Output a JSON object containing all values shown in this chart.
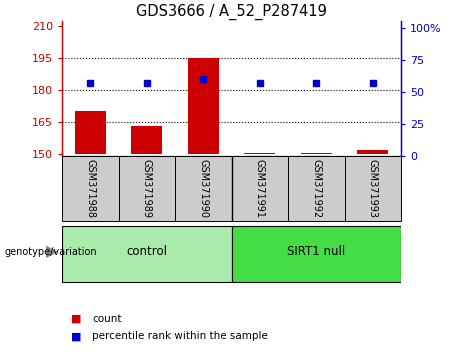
{
  "title": "GDS3666 / A_52_P287419",
  "samples": [
    "GSM371988",
    "GSM371989",
    "GSM371990",
    "GSM371991",
    "GSM371992",
    "GSM371993"
  ],
  "count_values": [
    170,
    163,
    195,
    150.5,
    150.3,
    151.5
  ],
  "percentile_values": [
    57,
    57,
    60,
    57,
    57,
    57
  ],
  "ylim_left": [
    149,
    212
  ],
  "ylim_right": [
    0,
    105
  ],
  "yticks_left": [
    150,
    165,
    180,
    195,
    210
  ],
  "yticks_right": [
    0,
    25,
    50,
    75,
    100
  ],
  "ytick_labels_right": [
    "0",
    "25",
    "50",
    "75",
    "100%"
  ],
  "bar_color": "#cc0000",
  "dot_color": "#0000cc",
  "control_color": "#aaeaaa",
  "sirt1_color": "#44dd44",
  "control_label": "control",
  "sirt1_label": "SIRT1 null",
  "genotype_label": "genotype/variation",
  "legend_count": "count",
  "legend_percentile": "percentile rank within the sample",
  "baseline": 150,
  "hgrid_lines": [
    165,
    180,
    195
  ]
}
